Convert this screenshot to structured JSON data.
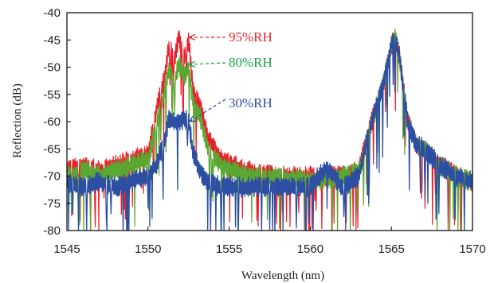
{
  "chart_data": {
    "type": "line",
    "xlabel": "Wavelength (nm)",
    "ylabel": "Reflection (dB)",
    "xlim": [
      1545,
      1570
    ],
    "ylim": [
      -80,
      -40
    ],
    "xticks": [
      "1545",
      "1550",
      "1555",
      "1560",
      "1565",
      "1570"
    ],
    "yticks": [
      "-40",
      "-45",
      "-50",
      "-55",
      "-60",
      "-65",
      "-70",
      "-75",
      "-80"
    ],
    "grid": false,
    "legend": "none",
    "series": [
      {
        "color": "#e8202a",
        "x": [
          1545,
          1546,
          1547,
          1548,
          1549,
          1550,
          1550.5,
          1551,
          1551.3,
          1551.6,
          1551.9,
          1552.2,
          1552.5,
          1552.8,
          1553.2,
          1553.7,
          1554.5,
          1556,
          1558,
          1560,
          1562,
          1563,
          1563.5,
          1564,
          1564.5,
          1565,
          1565.2,
          1565.5,
          1566,
          1566.5,
          1567,
          1568,
          1569,
          1570
        ],
        "y": [
          -69,
          -68,
          -69,
          -68,
          -67,
          -66,
          -58,
          -52,
          -46,
          -49,
          -44.5,
          -48,
          -45,
          -55,
          -57,
          -63,
          -67,
          -69,
          -70,
          -70,
          -70,
          -69,
          -63,
          -58,
          -53,
          -46,
          -44.5,
          -48,
          -60,
          -64,
          -65,
          -68,
          -70,
          -71
        ]
      },
      {
        "color": "#5aa832",
        "x": [
          1545,
          1546,
          1547,
          1548,
          1549,
          1550,
          1550.5,
          1551,
          1551.3,
          1551.6,
          1551.9,
          1552.2,
          1552.5,
          1552.8,
          1553.2,
          1553.7,
          1554.5,
          1556,
          1558,
          1560,
          1562,
          1563,
          1563.5,
          1564,
          1564.5,
          1565,
          1565.2,
          1565.5,
          1566,
          1566.5,
          1567,
          1568,
          1569,
          1570
        ],
        "y": [
          -70,
          -69,
          -70,
          -69,
          -68,
          -67,
          -61,
          -55,
          -50,
          -53,
          -49.5,
          -52,
          -50,
          -57,
          -59,
          -65,
          -68,
          -70,
          -70,
          -71,
          -70,
          -69,
          -64,
          -58,
          -53,
          -46,
          -44.5,
          -48,
          -60,
          -64,
          -65,
          -68,
          -70,
          -71
        ]
      },
      {
        "color": "#2c4fa3",
        "x": [
          1545,
          1546,
          1547,
          1548,
          1549,
          1550,
          1550.5,
          1551,
          1551.3,
          1551.6,
          1551.9,
          1552.2,
          1552.5,
          1552.8,
          1553.2,
          1553.7,
          1554.5,
          1556,
          1558,
          1560,
          1561,
          1562,
          1563,
          1563.5,
          1564,
          1564.5,
          1565,
          1565.2,
          1565.5,
          1566,
          1566.5,
          1567,
          1568,
          1569,
          1570
        ],
        "y": [
          -71,
          -72,
          -71,
          -72,
          -71,
          -70,
          -68,
          -64,
          -59.5,
          -60,
          -60,
          -59.5,
          -60,
          -66,
          -69,
          -71,
          -72,
          -72,
          -72,
          -72,
          -68.5,
          -72,
          -70,
          -63,
          -58,
          -53,
          -46,
          -44.5,
          -48,
          -60,
          -64,
          -65,
          -68,
          -70,
          -71
        ]
      }
    ],
    "annotations": [
      {
        "text": "95%RH",
        "color": "#e8202a",
        "x": 1552.3,
        "y": -44.5
      },
      {
        "text": "80%RH",
        "color": "#1aa34a",
        "x": 1552.3,
        "y": -49.5
      },
      {
        "text": "30%RH",
        "color": "#2c4fa3",
        "x": 1552.3,
        "y": -60
      }
    ]
  }
}
